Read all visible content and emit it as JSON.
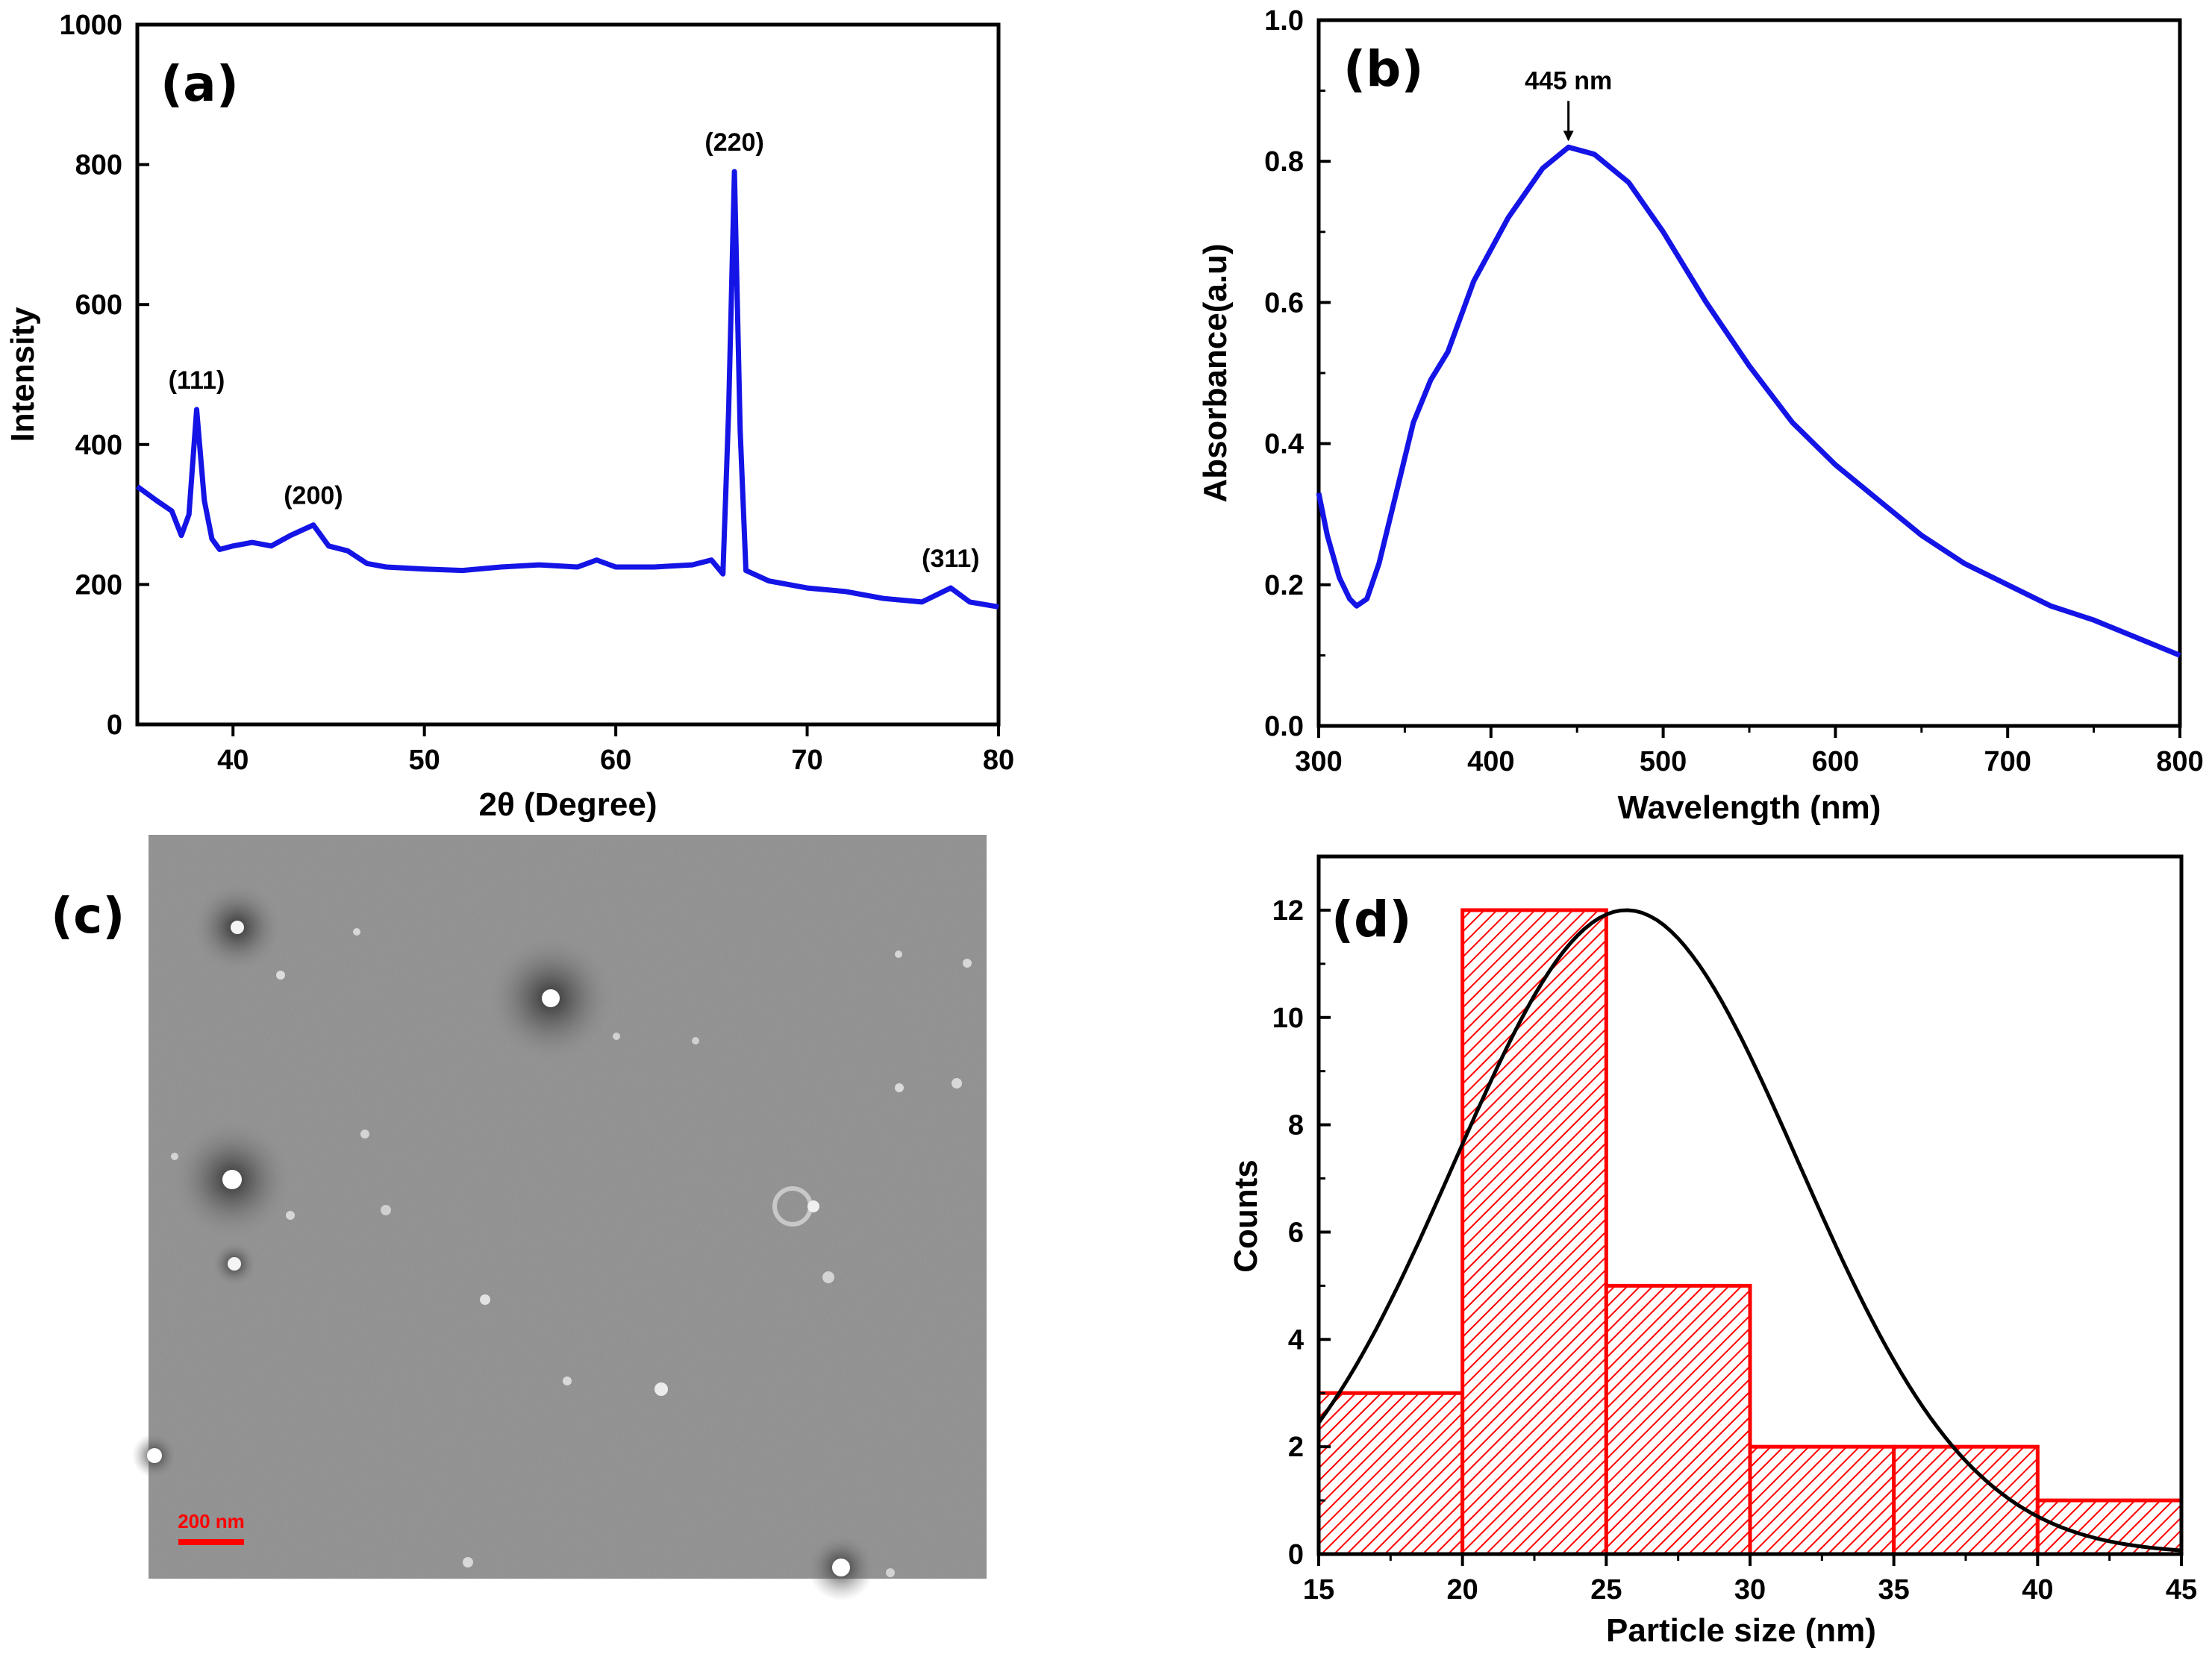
{
  "chart_data": [
    {
      "panel": "(a)",
      "type": "line",
      "xlabel": "2θ (Degree)",
      "ylabel": "Intensity",
      "xlim": [
        35,
        80
      ],
      "ylim": [
        0,
        1000
      ],
      "xticks": [
        40,
        50,
        60,
        70,
        80
      ],
      "yticks": [
        0,
        200,
        400,
        600,
        800,
        1000
      ],
      "color": "#1414e6",
      "x": [
        35,
        36,
        36.8,
        37.3,
        37.7,
        38.1,
        38.5,
        38.9,
        39.3,
        40,
        41,
        42,
        43,
        44.2,
        45,
        46,
        47,
        48,
        50,
        52,
        54,
        56,
        58,
        59,
        60,
        62,
        64,
        65,
        65.6,
        65.9,
        66.2,
        66.5,
        66.8,
        67.2,
        68,
        70,
        72,
        74,
        76,
        77.5,
        78.5,
        80
      ],
      "y": [
        340,
        320,
        305,
        270,
        300,
        450,
        320,
        265,
        250,
        255,
        260,
        255,
        270,
        285,
        255,
        248,
        230,
        225,
        222,
        220,
        225,
        228,
        225,
        235,
        225,
        225,
        228,
        235,
        215,
        450,
        790,
        420,
        220,
        215,
        205,
        195,
        190,
        180,
        175,
        195,
        175,
        168
      ],
      "annotations": [
        {
          "label": "(111)",
          "x": 38.1,
          "y": 450
        },
        {
          "label": "(200)",
          "x": 44.2,
          "y": 285
        },
        {
          "label": "(220)",
          "x": 66.2,
          "y": 790
        },
        {
          "label": "(311)",
          "x": 77.5,
          "y": 195
        }
      ]
    },
    {
      "panel": "(b)",
      "type": "line",
      "xlabel": "Wavelength (nm)",
      "ylabel": "Absorbance(a.u)",
      "xlim": [
        300,
        800
      ],
      "ylim": [
        0.0,
        1.0
      ],
      "xticks": [
        300,
        400,
        500,
        600,
        700,
        800
      ],
      "yticks": [
        0.0,
        0.2,
        0.4,
        0.6,
        0.8,
        1.0
      ],
      "ytick_labels": [
        "0.0",
        "0.2",
        "0.4",
        "0.6",
        "0.8",
        "1.0"
      ],
      "color": "#1414e6",
      "x": [
        300,
        305,
        312,
        318,
        322,
        328,
        335,
        345,
        355,
        365,
        375,
        390,
        410,
        430,
        445,
        460,
        480,
        500,
        525,
        550,
        575,
        600,
        625,
        650,
        675,
        700,
        725,
        750,
        775,
        800
      ],
      "y": [
        0.33,
        0.27,
        0.21,
        0.18,
        0.17,
        0.18,
        0.23,
        0.33,
        0.43,
        0.49,
        0.53,
        0.63,
        0.72,
        0.79,
        0.82,
        0.81,
        0.77,
        0.7,
        0.6,
        0.51,
        0.43,
        0.37,
        0.32,
        0.27,
        0.23,
        0.2,
        0.17,
        0.15,
        0.125,
        0.1
      ],
      "peak_annotation": {
        "label": "445 nm",
        "x": 445,
        "y": 0.82
      }
    },
    {
      "panel": "(d)",
      "type": "bar",
      "xlabel": "Particle size (nm)",
      "ylabel": "Counts",
      "xlim": [
        15,
        45
      ],
      "ylim": [
        0,
        13
      ],
      "xticks": [
        15,
        20,
        25,
        30,
        35,
        40,
        45
      ],
      "yticks": [
        0,
        2,
        4,
        6,
        8,
        10,
        12
      ],
      "bins": [
        [
          15,
          20
        ],
        [
          20,
          25
        ],
        [
          25,
          30
        ],
        [
          30,
          35
        ],
        [
          35,
          40
        ],
        [
          40,
          45
        ]
      ],
      "values": [
        3,
        12,
        5,
        2,
        2,
        1
      ],
      "bar_color": "#ff0000",
      "fit": {
        "type": "gaussian",
        "mean": 25.7,
        "sigma": 6.0,
        "amplitude": 12.0,
        "color": "#000000"
      }
    }
  ],
  "image_panel": {
    "panel": "(c)",
    "scale_bar_label": "200 nm"
  }
}
